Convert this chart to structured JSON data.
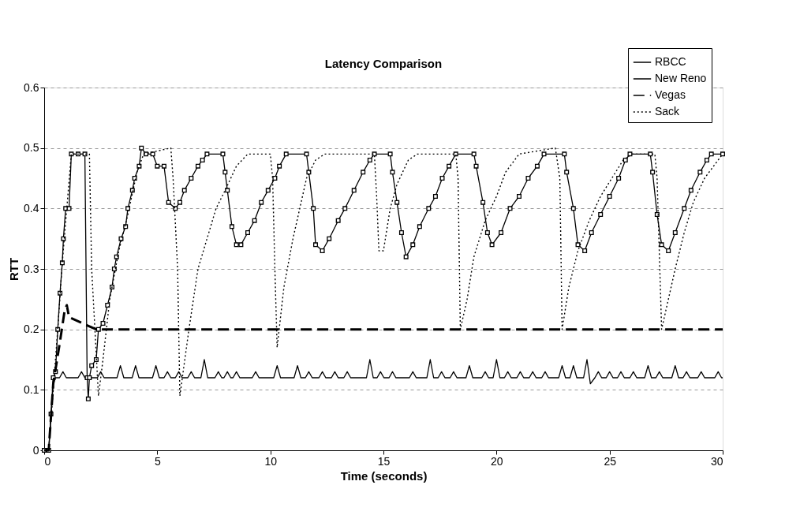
{
  "chart_data": {
    "type": "line",
    "title": "Latency Comparison",
    "xlabel": "Time (seconds)",
    "ylabel": "RTT",
    "xlim": [
      0,
      30
    ],
    "xticks": [
      0,
      5,
      10,
      15,
      20,
      25,
      30
    ],
    "ylim": [
      0,
      0.6
    ],
    "yticks": [
      0,
      0.1,
      0.2,
      0.3,
      0.4,
      0.5,
      0.6
    ],
    "grid": "y",
    "legend": "top right",
    "series": [
      {
        "name": "RBCC",
        "color": "#000000",
        "line_style": "solid",
        "marker": "none",
        "x": [
          0,
          0.2,
          0.4,
          0.5,
          0.68,
          0.83,
          0.98,
          1.5,
          1.65,
          1.8,
          2.35,
          2.5,
          2.65,
          3.22,
          3.37,
          3.52,
          3.89,
          4.04,
          4.19,
          4.79,
          4.94,
          5.09,
          5.3,
          5.45,
          5.6,
          5.8,
          5.95,
          6.1,
          6.35,
          6.5,
          6.65,
          6.93,
          7.08,
          7.23,
          7.55,
          7.7,
          7.85,
          7.95,
          8.1,
          8.25,
          8.35,
          8.5,
          8.65,
          9.2,
          9.35,
          9.5,
          10.15,
          10.3,
          10.45,
          11.05,
          11.2,
          11.35,
          11.55,
          11.7,
          11.85,
          12.15,
          12.3,
          12.45,
          12.7,
          12.85,
          13.0,
          13.25,
          13.4,
          13.55,
          14.25,
          14.4,
          14.55,
          14.72,
          14.87,
          15.02,
          15.25,
          15.4,
          15.55,
          16.15,
          16.3,
          16.45,
          16.92,
          17.07,
          17.22,
          17.42,
          17.57,
          17.72,
          17.95,
          18.1,
          18.25,
          18.65,
          18.8,
          18.95,
          19.35,
          19.5,
          19.65,
          19.85,
          20.0,
          20.15,
          20.35,
          20.5,
          20.65,
          20.9,
          21.05,
          21.2,
          21.45,
          21.6,
          21.75,
          22.0,
          22.15,
          22.3,
          22.75,
          22.9,
          23.05,
          23.25,
          23.4,
          23.55,
          23.85,
          24.0,
          24.15,
          24.35,
          24.5,
          24.65,
          24.85,
          25.0,
          25.15,
          25.35,
          25.5,
          25.65,
          25.9,
          26.05,
          26.2,
          26.55,
          26.7,
          26.85,
          27.05,
          27.2,
          27.35,
          27.75,
          27.9,
          28.05,
          28.25,
          28.4,
          28.55,
          28.9,
          29.05,
          29.2,
          29.65,
          29.8,
          29.95,
          30
        ],
        "values": [
          0,
          0,
          0.11,
          0.12,
          0.12,
          0.13,
          0.12,
          0.12,
          0.13,
          0.12,
          0.12,
          0.13,
          0.12,
          0.12,
          0.14,
          0.12,
          0.12,
          0.14,
          0.12,
          0.12,
          0.14,
          0.12,
          0.12,
          0.13,
          0.12,
          0.12,
          0.13,
          0.12,
          0.12,
          0.13,
          0.12,
          0.12,
          0.15,
          0.12,
          0.12,
          0.13,
          0.12,
          0.12,
          0.13,
          0.12,
          0.12,
          0.13,
          0.12,
          0.12,
          0.13,
          0.12,
          0.12,
          0.14,
          0.12,
          0.12,
          0.14,
          0.12,
          0.12,
          0.13,
          0.12,
          0.12,
          0.13,
          0.12,
          0.12,
          0.13,
          0.12,
          0.12,
          0.13,
          0.12,
          0.12,
          0.15,
          0.12,
          0.12,
          0.13,
          0.12,
          0.12,
          0.13,
          0.12,
          0.12,
          0.13,
          0.12,
          0.12,
          0.15,
          0.12,
          0.12,
          0.13,
          0.12,
          0.12,
          0.13,
          0.12,
          0.12,
          0.14,
          0.12,
          0.12,
          0.13,
          0.12,
          0.12,
          0.15,
          0.12,
          0.12,
          0.13,
          0.12,
          0.12,
          0.13,
          0.12,
          0.12,
          0.13,
          0.12,
          0.12,
          0.13,
          0.12,
          0.12,
          0.14,
          0.12,
          0.12,
          0.14,
          0.12,
          0.12,
          0.15,
          0.11,
          0.12,
          0.13,
          0.12,
          0.12,
          0.13,
          0.12,
          0.12,
          0.13,
          0.12,
          0.12,
          0.13,
          0.12,
          0.12,
          0.14,
          0.12,
          0.12,
          0.13,
          0.12,
          0.12,
          0.14,
          0.12,
          0.12,
          0.13,
          0.12,
          0.12,
          0.13,
          0.12,
          0.12,
          0.13,
          0.12,
          0.12
        ]
      },
      {
        "name": "New Reno",
        "color": "#000000",
        "line_style": "solid",
        "marker": "square",
        "x": [
          0,
          0.2,
          0.3,
          0.4,
          0.5,
          0.6,
          0.7,
          0.8,
          0.85,
          0.95,
          1.1,
          1.2,
          1.5,
          1.8,
          1.9,
          1.95,
          2.0,
          2.1,
          2.3,
          2.4,
          2.6,
          2.8,
          3.0,
          3.1,
          3.2,
          3.4,
          3.6,
          3.7,
          3.9,
          4.0,
          4.2,
          4.3,
          4.5,
          4.8,
          5.0,
          5.3,
          5.5,
          5.8,
          6.0,
          6.2,
          6.5,
          6.8,
          7.0,
          7.2,
          7.9,
          8.0,
          8.1,
          8.3,
          8.5,
          8.7,
          9.0,
          9.3,
          9.6,
          9.9,
          10.2,
          10.4,
          10.7,
          11.6,
          11.7,
          11.9,
          12.0,
          12.3,
          12.6,
          13.0,
          13.3,
          13.7,
          14.1,
          14.4,
          14.6,
          15.3,
          15.4,
          15.6,
          15.8,
          16.0,
          16.3,
          16.6,
          17.0,
          17.3,
          17.6,
          17.9,
          18.2,
          19.0,
          19.1,
          19.4,
          19.6,
          19.8,
          20.2,
          20.6,
          21.0,
          21.4,
          21.8,
          22.1,
          23.0,
          23.1,
          23.4,
          23.6,
          23.9,
          24.2,
          24.6,
          25.0,
          25.4,
          25.7,
          25.9,
          26.8,
          26.9,
          27.1,
          27.3,
          27.6,
          27.9,
          28.3,
          28.6,
          29.0,
          29.3,
          29.5,
          30
        ],
        "values": [
          0,
          0,
          0.06,
          0.12,
          0.13,
          0.2,
          0.26,
          0.31,
          0.35,
          0.4,
          0.4,
          0.49,
          0.49,
          0.49,
          0.12,
          0.085,
          0.12,
          0.14,
          0.15,
          0.2,
          0.21,
          0.24,
          0.27,
          0.3,
          0.32,
          0.35,
          0.37,
          0.4,
          0.43,
          0.45,
          0.47,
          0.5,
          0.49,
          0.49,
          0.47,
          0.47,
          0.41,
          0.4,
          0.41,
          0.43,
          0.45,
          0.47,
          0.48,
          0.49,
          0.49,
          0.46,
          0.43,
          0.37,
          0.34,
          0.34,
          0.36,
          0.38,
          0.41,
          0.43,
          0.45,
          0.47,
          0.49,
          0.49,
          0.46,
          0.4,
          0.34,
          0.33,
          0.35,
          0.38,
          0.4,
          0.43,
          0.46,
          0.48,
          0.49,
          0.49,
          0.46,
          0.41,
          0.36,
          0.32,
          0.34,
          0.37,
          0.4,
          0.42,
          0.45,
          0.47,
          0.49,
          0.49,
          0.47,
          0.41,
          0.36,
          0.34,
          0.36,
          0.4,
          0.42,
          0.45,
          0.47,
          0.49,
          0.49,
          0.46,
          0.4,
          0.34,
          0.33,
          0.36,
          0.39,
          0.42,
          0.45,
          0.48,
          0.49,
          0.49,
          0.46,
          0.39,
          0.34,
          0.33,
          0.36,
          0.4,
          0.43,
          0.46,
          0.48,
          0.49,
          0.49
        ]
      },
      {
        "name": "Vegas",
        "color": "#000000",
        "line_style": "dashed",
        "marker": "none",
        "x": [
          0,
          0.2,
          0.4,
          0.7,
          0.9,
          1.0,
          1.1,
          2.3,
          30
        ],
        "values": [
          0,
          0,
          0.11,
          0.18,
          0.23,
          0.24,
          0.22,
          0.2,
          0.2
        ]
      },
      {
        "name": "Sack",
        "color": "#000000",
        "line_style": "dotted",
        "marker": "none",
        "x": [
          0,
          0.2,
          0.4,
          0.6,
          0.8,
          1.0,
          1.2,
          2.0,
          2.1,
          2.4,
          2.6,
          2.9,
          3.3,
          3.7,
          4.1,
          4.4,
          5.6,
          5.7,
          5.9,
          6.0,
          6.4,
          6.8,
          7.2,
          7.6,
          8.0,
          8.5,
          9.0,
          10.0,
          10.1,
          10.2,
          10.3,
          10.6,
          11.0,
          11.3,
          11.6,
          12.0,
          12.4,
          14.6,
          14.7,
          14.8,
          15.0,
          15.3,
          15.6,
          16.1,
          16.5,
          18.2,
          18.3,
          18.4,
          18.7,
          19.0,
          19.5,
          20.0,
          20.4,
          21.0,
          22.6,
          22.8,
          22.9,
          23.2,
          23.6,
          24.1,
          24.6,
          25.1,
          25.6,
          26.0,
          27.0,
          27.1,
          27.3,
          27.6,
          27.9,
          28.3,
          28.7,
          29.2,
          29.6,
          30
        ],
        "values": [
          0,
          0,
          0.1,
          0.2,
          0.31,
          0.4,
          0.49,
          0.49,
          0.3,
          0.09,
          0.15,
          0.25,
          0.33,
          0.39,
          0.46,
          0.49,
          0.5,
          0.45,
          0.3,
          0.09,
          0.2,
          0.3,
          0.35,
          0.4,
          0.43,
          0.47,
          0.49,
          0.49,
          0.45,
          0.3,
          0.17,
          0.27,
          0.35,
          0.4,
          0.45,
          0.48,
          0.49,
          0.49,
          0.42,
          0.33,
          0.33,
          0.4,
          0.44,
          0.48,
          0.49,
          0.49,
          0.45,
          0.2,
          0.25,
          0.32,
          0.38,
          0.42,
          0.46,
          0.49,
          0.5,
          0.45,
          0.2,
          0.27,
          0.33,
          0.38,
          0.42,
          0.45,
          0.48,
          0.49,
          0.49,
          0.45,
          0.2,
          0.25,
          0.3,
          0.36,
          0.41,
          0.45,
          0.47,
          0.49
        ]
      }
    ]
  }
}
